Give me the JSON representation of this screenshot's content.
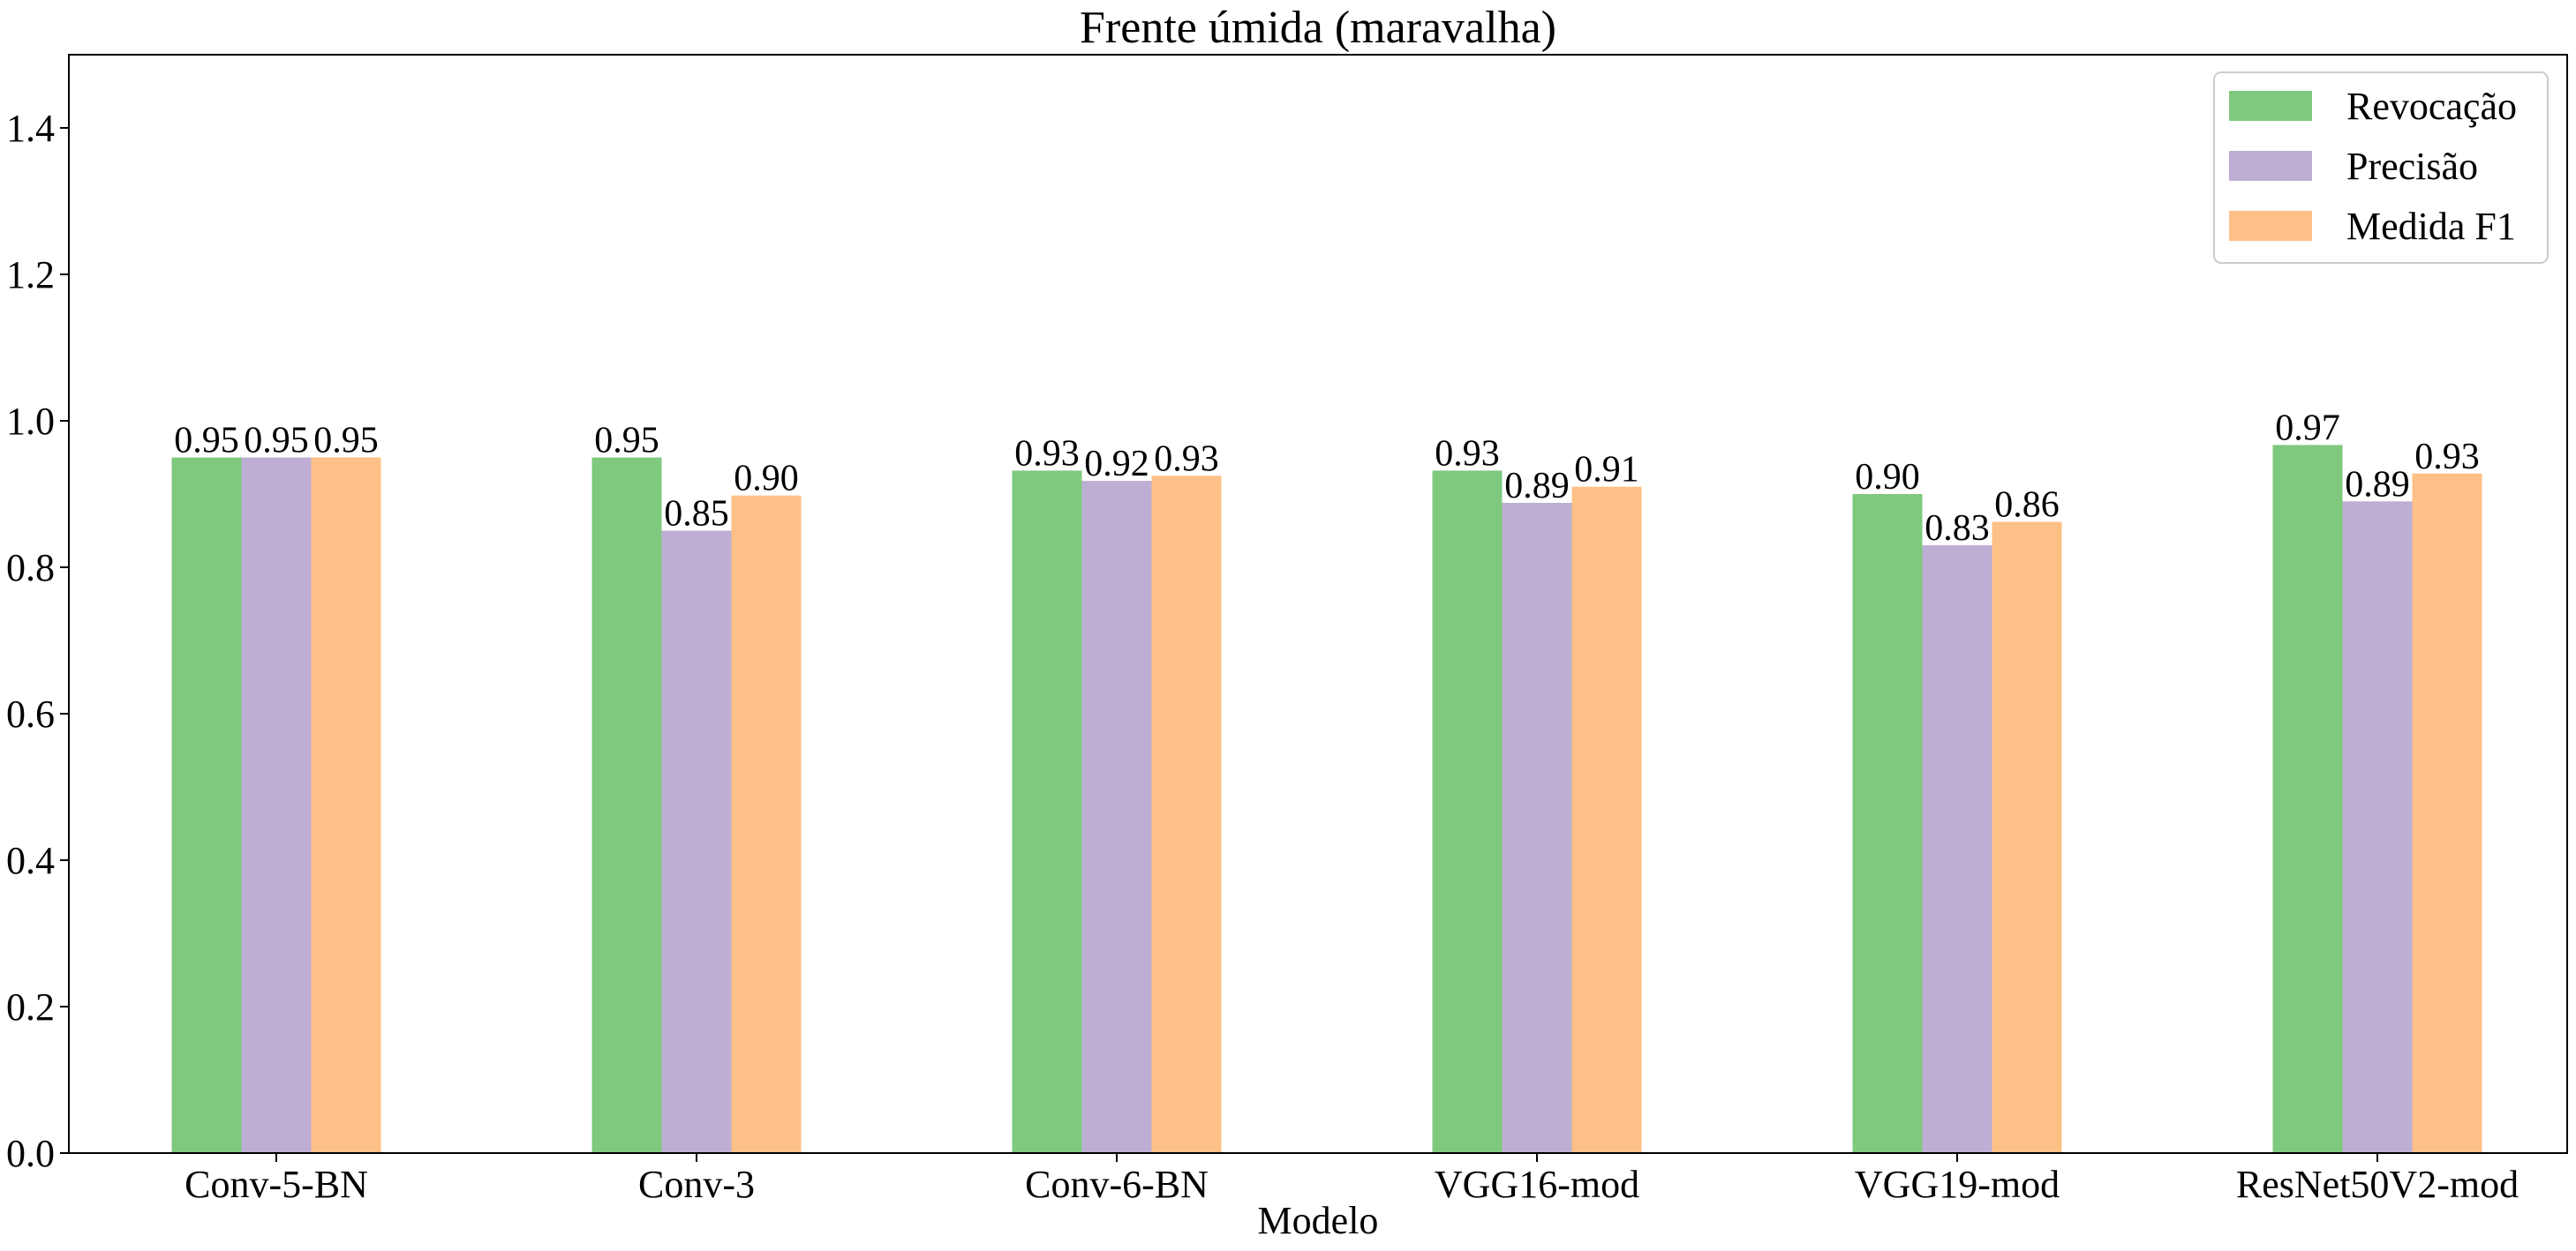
{
  "chart_data": {
    "type": "bar",
    "title": "Frente úmida (maravalha)",
    "xlabel": "Modelo",
    "ylabel": "",
    "ylim": [
      0,
      1.5
    ],
    "yticks": [
      "0.0",
      "0.2",
      "0.4",
      "0.6",
      "0.8",
      "1.0",
      "1.2",
      "1.4"
    ],
    "ytick_values": [
      0,
      0.2,
      0.4,
      0.6,
      0.8,
      1.0,
      1.2,
      1.4
    ],
    "grid": false,
    "legend_position": "top-right",
    "categories": [
      "Conv-5-BN",
      "Conv-3",
      "Conv-6-BN",
      "VGG16-mod",
      "VGG19-mod",
      "ResNet50V2-mod"
    ],
    "series": [
      {
        "name": "Revocação",
        "color": "#7fc97f",
        "values": [
          0.95,
          0.95,
          0.932,
          0.932,
          0.9,
          0.967
        ],
        "labels": [
          "0.95",
          "0.95",
          "0.93",
          "0.93",
          "0.90",
          "0.97"
        ]
      },
      {
        "name": "Precisão",
        "color": "#beaed4",
        "values": [
          0.95,
          0.85,
          0.918,
          0.888,
          0.83,
          0.89
        ],
        "labels": [
          "0.95",
          "0.85",
          "0.92",
          "0.89",
          "0.83",
          "0.89"
        ]
      },
      {
        "name": "Medida F1",
        "color": "#fdc086",
        "values": [
          0.95,
          0.898,
          0.925,
          0.91,
          0.862,
          0.928
        ],
        "labels": [
          "0.95",
          "0.90",
          "0.93",
          "0.91",
          "0.86",
          "0.93"
        ]
      }
    ]
  }
}
